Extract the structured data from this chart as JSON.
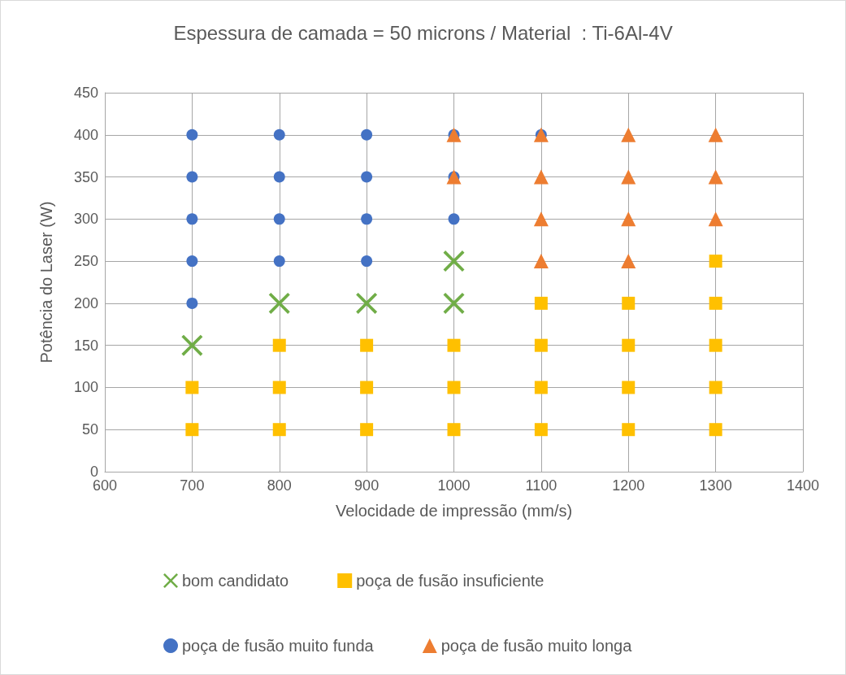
{
  "chart_data": {
    "type": "scatter",
    "title": "Espessura de camada = 50 microns / Material  : Ti-6Al-4V",
    "xlabel": "Velocidade de impressão (mm/s)",
    "ylabel": "Potência do Laser (W)",
    "xlim": [
      600,
      1400
    ],
    "xticks": [
      600,
      700,
      800,
      900,
      1000,
      1100,
      1200,
      1300,
      1400
    ],
    "ylim": [
      0,
      450
    ],
    "yticks": [
      0,
      50,
      100,
      150,
      200,
      250,
      300,
      350,
      400,
      450
    ],
    "grid": true,
    "legend": "bottom",
    "series": [
      {
        "name": "bom candidato",
        "color": "#70ad47",
        "marker": "cross",
        "x": [
          700,
          800,
          900,
          1000,
          1000
        ],
        "values": [
          150,
          200,
          200,
          200,
          250
        ]
      },
      {
        "name": "poça de fusão insuficiente",
        "color": "#ffc000",
        "marker": "square",
        "x": [
          700,
          700,
          800,
          800,
          800,
          900,
          900,
          900,
          1000,
          1000,
          1000,
          1100,
          1100,
          1100,
          1100,
          1200,
          1200,
          1200,
          1200,
          1300,
          1300,
          1300,
          1300,
          1300
        ],
        "values": [
          50,
          100,
          50,
          100,
          150,
          50,
          100,
          150,
          50,
          100,
          150,
          50,
          100,
          150,
          200,
          50,
          100,
          150,
          200,
          50,
          100,
          150,
          200,
          250
        ]
      },
      {
        "name": "poça de fusão muito funda",
        "color": "#4472c4",
        "marker": "circle",
        "x": [
          700,
          700,
          700,
          700,
          700,
          800,
          800,
          800,
          800,
          900,
          900,
          900,
          900,
          1000,
          1000,
          1000,
          1100
        ],
        "values": [
          200,
          250,
          300,
          350,
          400,
          250,
          300,
          350,
          400,
          250,
          300,
          350,
          400,
          300,
          350,
          400,
          400
        ]
      },
      {
        "name": "poça de fusão muito longa",
        "color": "#ed7d31",
        "marker": "triangle",
        "x": [
          1000,
          1000,
          1100,
          1100,
          1100,
          1100,
          1200,
          1200,
          1200,
          1200,
          1300,
          1300,
          1300
        ],
        "values": [
          350,
          400,
          250,
          300,
          350,
          400,
          250,
          300,
          350,
          400,
          300,
          350,
          400
        ]
      }
    ]
  }
}
